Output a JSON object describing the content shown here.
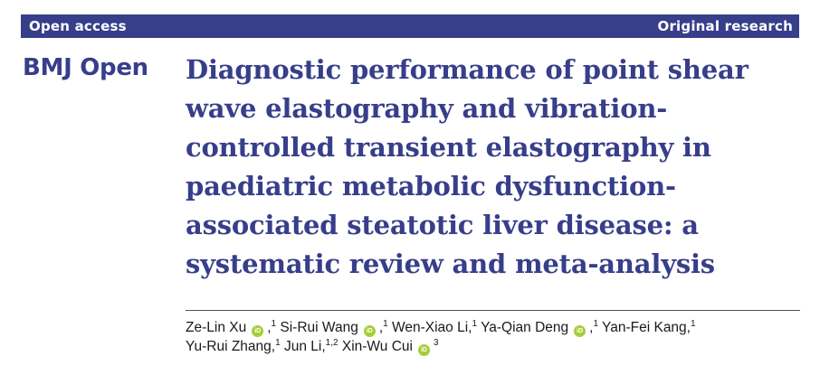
{
  "header": {
    "access_label": "Open access",
    "article_type": "Original research"
  },
  "journal": "BMJ Open",
  "title_lines": [
    "Diagnostic performance of point shear",
    "wave elastography and vibration-",
    "controlled transient elastography in",
    "paediatric metabolic dysfunction-",
    "associated steatotic liver disease: a",
    "systematic review and meta-analysis"
  ],
  "authors": [
    {
      "name": "Ze-Lin Xu",
      "orcid": true,
      "sep": ",",
      "aff": "1"
    },
    {
      "name": "Si-Rui Wang",
      "orcid": true,
      "sep": ",",
      "aff": "1"
    },
    {
      "name": "Wen-Xiao Li,",
      "orcid": false,
      "sep": "",
      "aff": "1"
    },
    {
      "name": "Ya-Qian Deng",
      "orcid": true,
      "sep": ",",
      "aff": "1"
    },
    {
      "name": "Yan-Fei Kang,",
      "orcid": false,
      "sep": "",
      "aff": "1"
    },
    {
      "name": "Yu-Rui Zhang,",
      "orcid": false,
      "sep": "",
      "aff": "1"
    },
    {
      "name": "Jun Li,",
      "orcid": false,
      "sep": "",
      "aff": "1,2"
    },
    {
      "name": "Xin-Wu Cui",
      "orcid": true,
      "sep": "",
      "aff": "3"
    }
  ],
  "orcid_icon_text": "iD",
  "colors": {
    "brand": "#373E8A",
    "orcid": "#A6CE39"
  }
}
